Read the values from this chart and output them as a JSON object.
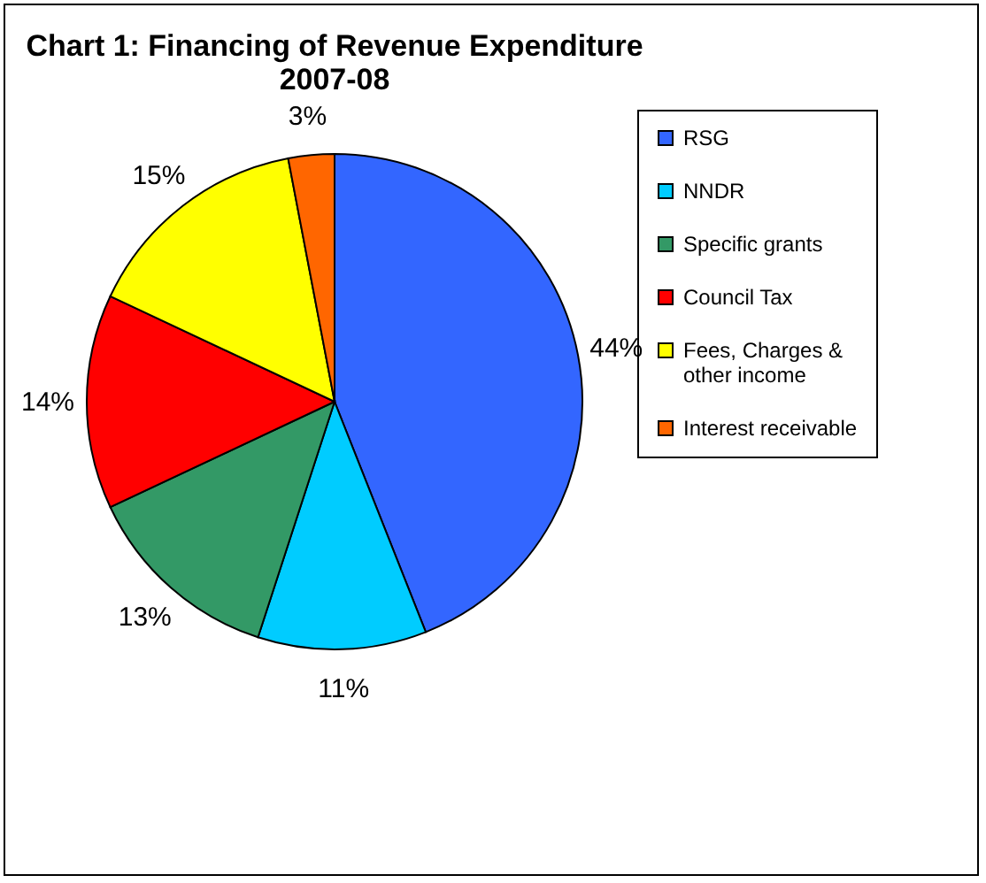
{
  "chart_data": {
    "type": "pie",
    "title": "Chart 1: Financing of Revenue Expenditure\n2007-08",
    "categories": [
      "RSG",
      "NNDR",
      "Specific grants",
      "Council Tax",
      "Fees, Charges & other income",
      "Interest receivable"
    ],
    "values": [
      44,
      11,
      13,
      14,
      15,
      3
    ],
    "colors": [
      "#3366ff",
      "#00ccff",
      "#339966",
      "#ff0000",
      "#ffff00",
      "#ff6600"
    ],
    "value_labels": [
      "44%",
      "11%",
      "13%",
      "14%",
      "15%",
      "3%"
    ],
    "legend": "right"
  }
}
